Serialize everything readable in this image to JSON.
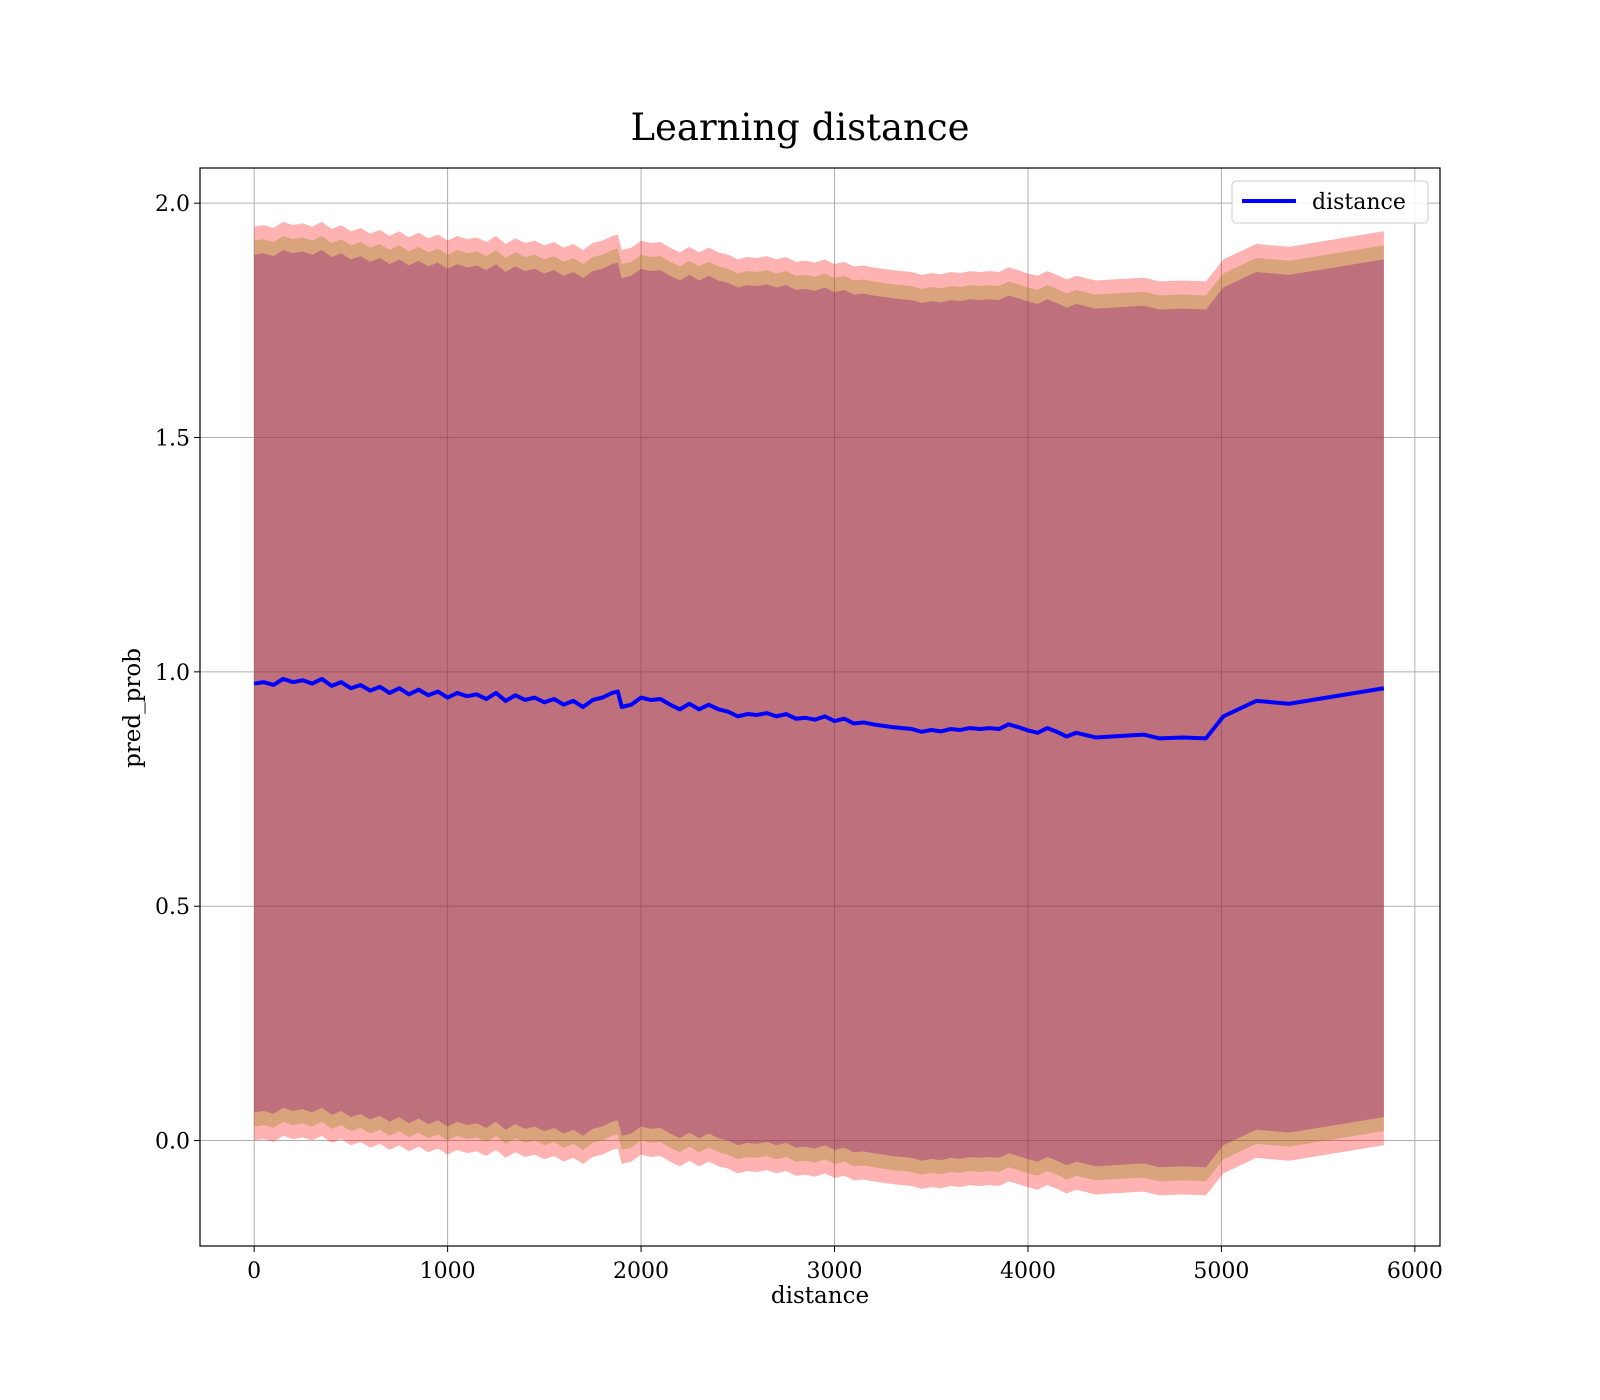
{
  "chart_data": {
    "type": "line",
    "title": "Learning distance",
    "xlabel": "distance",
    "ylabel": "pred_prob",
    "xlim": [
      -280,
      6130
    ],
    "ylim": [
      -0.225,
      2.075
    ],
    "xticks": [
      0,
      1000,
      2000,
      3000,
      4000,
      5000,
      6000
    ],
    "xtick_labels": [
      "0",
      "1000",
      "2000",
      "3000",
      "4000",
      "5000",
      "6000"
    ],
    "yticks": [
      0.0,
      0.5,
      1.0,
      1.5,
      2.0
    ],
    "ytick_labels": [
      "0.0",
      "0.5",
      "1.0",
      "1.5",
      "2.0"
    ],
    "grid": true,
    "legend_position": "top-right",
    "series": [
      {
        "name": "distance",
        "color": "#0000ff",
        "x": [
          0,
          50,
          100,
          150,
          200,
          250,
          300,
          350,
          400,
          450,
          500,
          550,
          600,
          650,
          700,
          750,
          800,
          850,
          900,
          950,
          1000,
          1050,
          1100,
          1150,
          1200,
          1250,
          1300,
          1350,
          1400,
          1450,
          1500,
          1550,
          1600,
          1650,
          1700,
          1750,
          1800,
          1850,
          1880,
          1900,
          1950,
          2000,
          2050,
          2100,
          2150,
          2200,
          2250,
          2300,
          2350,
          2400,
          2450,
          2500,
          2550,
          2600,
          2650,
          2700,
          2750,
          2800,
          2850,
          2900,
          2950,
          3000,
          3050,
          3100,
          3150,
          3200,
          3250,
          3300,
          3350,
          3400,
          3450,
          3500,
          3550,
          3600,
          3650,
          3700,
          3750,
          3800,
          3850,
          3900,
          3950,
          4000,
          4050,
          4100,
          4150,
          4200,
          4250,
          4350,
          4550,
          4600,
          4680,
          4800,
          4920,
          5010,
          5180,
          5350,
          5840
        ],
        "y": [
          0.975,
          0.978,
          0.972,
          0.985,
          0.978,
          0.982,
          0.975,
          0.985,
          0.97,
          0.978,
          0.965,
          0.972,
          0.96,
          0.968,
          0.955,
          0.965,
          0.952,
          0.962,
          0.95,
          0.958,
          0.945,
          0.955,
          0.948,
          0.952,
          0.942,
          0.955,
          0.938,
          0.95,
          0.94,
          0.945,
          0.935,
          0.942,
          0.93,
          0.938,
          0.925,
          0.94,
          0.945,
          0.955,
          0.958,
          0.925,
          0.93,
          0.945,
          0.94,
          0.942,
          0.93,
          0.92,
          0.932,
          0.92,
          0.93,
          0.92,
          0.915,
          0.905,
          0.91,
          0.908,
          0.912,
          0.905,
          0.91,
          0.9,
          0.902,
          0.898,
          0.905,
          0.895,
          0.9,
          0.89,
          0.892,
          0.888,
          0.885,
          0.882,
          0.88,
          0.878,
          0.872,
          0.876,
          0.873,
          0.878,
          0.876,
          0.88,
          0.878,
          0.88,
          0.878,
          0.888,
          0.882,
          0.875,
          0.87,
          0.88,
          0.872,
          0.862,
          0.87,
          0.86,
          0.865,
          0.866,
          0.858,
          0.86,
          0.858,
          0.905,
          0.938,
          0.932,
          0.965
        ]
      }
    ],
    "bands": [
      {
        "color": "#ff0000",
        "opacity": 0.3,
        "half_width": 0.975
      },
      {
        "color": "#808000",
        "opacity": 0.3,
        "half_width": 0.945
      },
      {
        "color": "#800080",
        "opacity": 0.3,
        "half_width": 0.915
      }
    ]
  }
}
